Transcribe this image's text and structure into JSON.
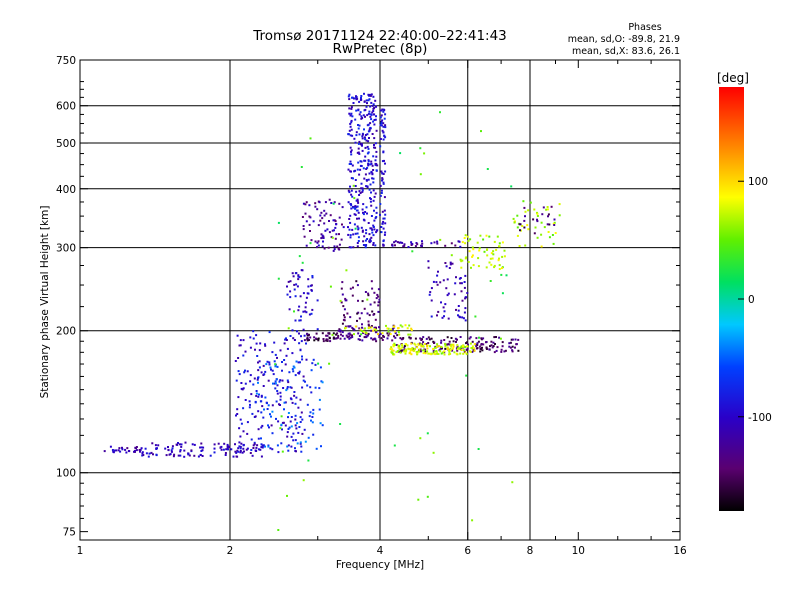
{
  "chart_data": {
    "type": "scatter",
    "title": "Tromsø 20171124 22:40:00–22:41:43",
    "subtitle": "RwPretec (8p)",
    "xlabel": "Frequency [MHz]",
    "ylabel": "Stationary phase Virtual Height [km]",
    "xscale": "log",
    "yscale": "log",
    "xlim": [
      1,
      16
    ],
    "ylim": [
      72,
      750
    ],
    "x_ticks": [
      1,
      2,
      4,
      6,
      8,
      10,
      16
    ],
    "x_tick_labels": [
      "1",
      "2",
      "4",
      "6",
      "8",
      "10",
      "16"
    ],
    "x_minor_ticks": [
      3,
      5,
      7,
      9,
      12,
      14
    ],
    "y_ticks": [
      75,
      100,
      200,
      300,
      400,
      500,
      600,
      750
    ],
    "y_tick_labels": [
      "75",
      "100",
      "200",
      "300",
      "400",
      "500",
      "600",
      "750"
    ],
    "x_grid": [
      2,
      4,
      6,
      8
    ],
    "y_grid": [
      100,
      200,
      300,
      400,
      500,
      600
    ],
    "grid": true,
    "phases_box": {
      "title": "Phases",
      "line1": "mean, sd,O: -89.8, 21.9",
      "line2": "mean, sd,X:  83.6, 26.1"
    },
    "colorbar": {
      "label": "[deg]",
      "range": [
        -180,
        180
      ],
      "ticks": [
        100,
        0,
        -100
      ],
      "tick_labels": [
        "100",
        "0",
        "-100"
      ],
      "colormap": "rainbow (black-purple-blue-cyan-green-yellow-orange-red)"
    },
    "series": [
      {
        "clusters": [
          {
            "x": [
              1.12,
              1.33
            ],
            "y": [
              110,
              114
            ],
            "phase": -110,
            "n": 28
          },
          {
            "x": [
              1.33,
              2.35
            ],
            "y": [
              108,
              116
            ],
            "phase": -105,
            "n": 120
          },
          {
            "x": [
              2.05,
              2.85
            ],
            "y": [
              110,
              200
            ],
            "phase": -95,
            "n": 200
          },
          {
            "x": [
              2.25,
              3.1
            ],
            "y": [
              112,
              175
            ],
            "phase": -60,
            "n": 90
          },
          {
            "x": [
              2.6,
              3.0
            ],
            "y": [
              190,
              270
            ],
            "phase": -100,
            "n": 60
          },
          {
            "x": [
              2.8,
              3.3
            ],
            "y": [
              190,
              198
            ],
            "phase": -150,
            "n": 45
          },
          {
            "x": [
              3.45,
              3.95
            ],
            "y": [
              300,
              640
            ],
            "phase": -95,
            "n": 330
          },
          {
            "x": [
              4.0,
              4.1
            ],
            "y": [
              300,
              600
            ],
            "phase": -95,
            "n": 70
          },
          {
            "x": [
              2.8,
              3.4
            ],
            "y": [
              295,
              380
            ],
            "phase": -120,
            "n": 80
          },
          {
            "x": [
              3.3,
              4.4
            ],
            "y": [
              190,
              205
            ],
            "phase": -135,
            "n": 80
          },
          {
            "x": [
              3.3,
              4.0
            ],
            "y": [
              205,
              255
            ],
            "phase": -140,
            "n": 55
          },
          {
            "x": [
              4.3,
              7.6
            ],
            "y": [
              180,
              194
            ],
            "phase": -145,
            "n": 160
          },
          {
            "x": [
              3.4,
              4.7
            ],
            "y": [
              196,
              206
            ],
            "phase": 80,
            "n": 40
          },
          {
            "x": [
              4.2,
              6.2
            ],
            "y": [
              178,
              188
            ],
            "phase": 80,
            "n": 150
          },
          {
            "x": [
              5.0,
              6.0
            ],
            "y": [
              210,
              285
            ],
            "phase": -110,
            "n": 60
          },
          {
            "x": [
              4.2,
              5.8
            ],
            "y": [
              300,
              310
            ],
            "phase": -120,
            "n": 35
          },
          {
            "x": [
              5.8,
              7.2
            ],
            "y": [
              270,
              320
            ],
            "phase": 70,
            "n": 60
          },
          {
            "x": [
              7.4,
              9.2
            ],
            "y": [
              300,
              380
            ],
            "phase": 70,
            "n": 40
          },
          {
            "x": [
              7.6,
              9.0
            ],
            "y": [
              320,
              370
            ],
            "phase": -140,
            "n": 20
          },
          {
            "x": [
              2.4,
              7.5
            ],
            "y": [
              75,
              600
            ],
            "phase": 40,
            "n": 60
          }
        ]
      }
    ]
  }
}
